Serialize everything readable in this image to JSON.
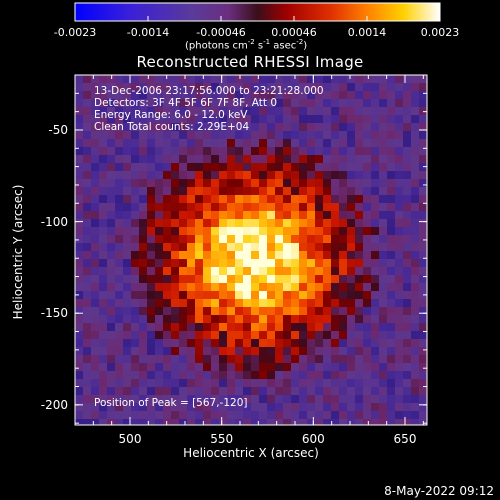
{
  "chart_data": {
    "type": "heatmap",
    "title": "Reconstructed RHESSI Image",
    "xlabel": "Heliocentric X (arcsec)",
    "ylabel": "Heliocentric Y (arcsec)",
    "xlim": [
      470,
      662
    ],
    "ylim": [
      -211,
      -20
    ],
    "x_ticks": [
      "500",
      "550",
      "600",
      "650"
    ],
    "y_ticks": [
      "-50",
      "-100",
      "-150",
      "-200"
    ],
    "x_tick_values": [
      500,
      550,
      600,
      650
    ],
    "y_tick_values": [
      -50,
      -100,
      -150,
      -200
    ],
    "colorbar": {
      "ticks": [
        "-0.0023",
        "-0.0014",
        "-0.00046",
        "0.00046",
        "0.0014",
        "0.0023"
      ],
      "range": [
        -0.0023,
        0.0023
      ],
      "units_prefix": "(photons cm",
      "units_sup1": "-2",
      "units_mid": " s",
      "units_sup2": "-1",
      "units_end": " asec",
      "units_sup3": "-2",
      "units_close": ")"
    },
    "annotations": [
      "13-Dec-2006 23:17:56.000 to 23:21:28.000",
      "Detectors: 3F 4F 5F 6F 7F 8F, Att 0",
      "Energy Range: 6.0 - 12.0 keV",
      "Clean     Total counts: 2.29E+04"
    ],
    "peak_label": "Position of Peak = [567,-120]",
    "peak": [
      567,
      -120
    ]
  },
  "timestamp": "8-May-2022 09:12"
}
